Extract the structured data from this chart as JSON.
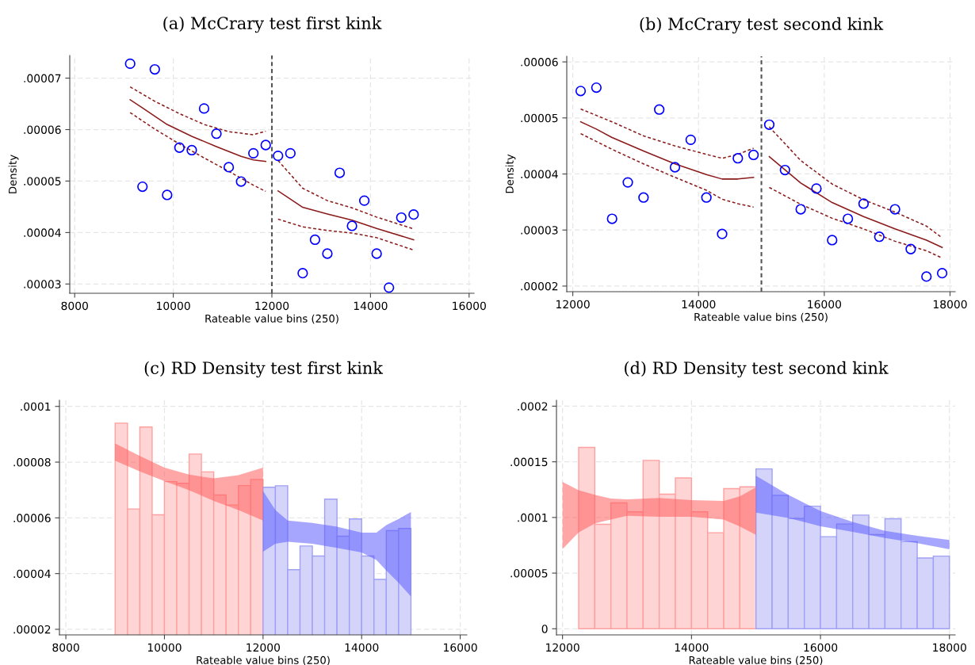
{
  "chart_data": [
    {
      "type": "scatter",
      "title": "(a) McCrary test first kink",
      "xlabel": "Rateable value bins (250)",
      "ylabel": "Density",
      "grid": true,
      "xlim": [
        7900,
        16100
      ],
      "xticks": [
        8000,
        10000,
        12000,
        14000,
        16000
      ],
      "ylim": [
        2.82e-05,
        7.44e-05
      ],
      "yticks": [
        {
          "value": 3e-05,
          "label": ".00003"
        },
        {
          "value": 4e-05,
          "label": ".00004"
        },
        {
          "value": 5e-05,
          "label": ".00005"
        },
        {
          "value": 6e-05,
          "label": ".00006"
        },
        {
          "value": 7e-05,
          "label": ".00007"
        }
      ],
      "ref_lines": [
        {
          "axis": "x",
          "value": 12000,
          "color": "#555555",
          "line_style": "dashed"
        }
      ],
      "series": [
        {
          "marker": "circle",
          "color": "#0000ff",
          "x": [
            9125,
            9375,
            9625,
            9875,
            10125,
            10375,
            10625,
            10875,
            11125,
            11375,
            11625,
            11875,
            12125,
            12375,
            12625,
            12875,
            13125,
            13375,
            13625,
            13875,
            14125,
            14375,
            14625,
            14875
          ],
          "values": [
            7.28e-05,
            4.89e-05,
            7.17e-05,
            4.73e-05,
            5.65e-05,
            5.6e-05,
            6.41e-05,
            5.92e-05,
            5.27e-05,
            4.99e-05,
            5.54e-05,
            5.7e-05,
            5.49e-05,
            5.54e-05,
            3.21e-05,
            3.86e-05,
            3.59e-05,
            5.16e-05,
            4.13e-05,
            4.62e-05,
            3.59e-05,
            2.93e-05,
            4.29e-05,
            4.35e-05
          ]
        },
        {
          "type": "line",
          "color": "#8b1a1a",
          "line_style": "solid",
          "x": [
            9125,
            9375,
            9875,
            10375,
            10875,
            11375,
            11625,
            11875
          ],
          "values": [
            6.58e-05,
            6.42e-05,
            6.1e-05,
            5.87e-05,
            5.67e-05,
            5.48e-05,
            5.41e-05,
            5.38e-05
          ]
        },
        {
          "type": "line",
          "color": "#8b1a1a",
          "line_style": "dashed",
          "x": [
            9125,
            9625,
            10125,
            10625,
            11125,
            11625,
            11875
          ],
          "values": [
            6.83e-05,
            6.55e-05,
            6.31e-05,
            6.1e-05,
            5.96e-05,
            5.9e-05,
            5.97e-05
          ]
        },
        {
          "type": "line",
          "color": "#8b1a1a",
          "line_style": "dashed",
          "x": [
            9125,
            9625,
            10125,
            10625,
            11125,
            11625,
            11875
          ],
          "values": [
            6.33e-05,
            6.01e-05,
            5.72e-05,
            5.45e-05,
            5.19e-05,
            4.92e-05,
            4.8e-05
          ]
        },
        {
          "type": "line",
          "color": "#8b1a1a",
          "line_style": "solid",
          "x": [
            12125,
            12625,
            13125,
            13625,
            14125,
            14875
          ],
          "values": [
            4.81e-05,
            4.49e-05,
            4.36e-05,
            4.24e-05,
            4.08e-05,
            3.86e-05
          ]
        },
        {
          "type": "line",
          "color": "#8b1a1a",
          "line_style": "dashed",
          "x": [
            12125,
            12625,
            13125,
            13625,
            14125,
            14875
          ],
          "values": [
            5.4e-05,
            4.86e-05,
            4.62e-05,
            4.48e-05,
            4.3e-05,
            4.07e-05
          ]
        },
        {
          "type": "line",
          "color": "#8b1a1a",
          "line_style": "dashed",
          "x": [
            12125,
            12625,
            13125,
            13625,
            14125,
            14875
          ],
          "values": [
            4.26e-05,
            4.11e-05,
            4.04e-05,
            3.99e-05,
            3.9e-05,
            3.66e-05
          ]
        }
      ]
    },
    {
      "type": "scatter",
      "title": "(b) McCrary test second kink",
      "xlabel": "Rateable value bins (250)",
      "ylabel": "Density",
      "grid": true,
      "xlim": [
        11904,
        18082
      ],
      "xticks": [
        12000,
        14000,
        16000,
        18000
      ],
      "ylim": [
        1.9e-05,
        6.1e-05
      ],
      "yticks": [
        {
          "value": 2e-05,
          "label": ".00002"
        },
        {
          "value": 3e-05,
          "label": ".00003"
        },
        {
          "value": 4e-05,
          "label": ".00004"
        },
        {
          "value": 5e-05,
          "label": ".00005"
        },
        {
          "value": 6e-05,
          "label": ".00006"
        }
      ],
      "ref_lines": [
        {
          "axis": "x",
          "value": 15000,
          "color": "#555555",
          "line_style": "dashed"
        }
      ],
      "series": [
        {
          "marker": "circle",
          "color": "#0000ff",
          "x": [
            12125,
            12375,
            12625,
            12875,
            13125,
            13375,
            13625,
            13875,
            14125,
            14375,
            14625,
            14875,
            15125,
            15375,
            15625,
            15875,
            16125,
            16375,
            16625,
            16875,
            17125,
            17375,
            17625,
            17875
          ],
          "values": [
            5.48e-05,
            5.54e-05,
            3.2e-05,
            3.85e-05,
            3.58e-05,
            5.15e-05,
            4.12e-05,
            4.61e-05,
            3.58e-05,
            2.93e-05,
            4.28e-05,
            4.34e-05,
            4.88e-05,
            4.07e-05,
            3.37e-05,
            3.74e-05,
            2.82e-05,
            3.2e-05,
            3.47e-05,
            2.88e-05,
            3.37e-05,
            2.66e-05,
            2.17e-05,
            2.23e-05
          ]
        },
        {
          "type": "line",
          "color": "#8b1a1a",
          "line_style": "solid",
          "x": [
            12125,
            12375,
            12625,
            13125,
            13625,
            14125,
            14375,
            14625,
            14875
          ],
          "values": [
            4.93e-05,
            4.8e-05,
            4.65e-05,
            4.41e-05,
            4.18e-05,
            3.99e-05,
            3.91e-05,
            3.91e-05,
            3.94e-05
          ]
        },
        {
          "type": "line",
          "color": "#8b1a1a",
          "line_style": "dashed",
          "x": [
            12125,
            12625,
            13125,
            13625,
            14125,
            14375,
            14625,
            14875
          ],
          "values": [
            5.16e-05,
            4.93e-05,
            4.68e-05,
            4.5e-05,
            4.35e-05,
            4.28e-05,
            4.35e-05,
            4.46e-05
          ]
        },
        {
          "type": "line",
          "color": "#8b1a1a",
          "line_style": "dashed",
          "x": [
            12125,
            12625,
            13125,
            13625,
            14125,
            14375,
            14625,
            14875
          ],
          "values": [
            4.72e-05,
            4.44e-05,
            4.18e-05,
            3.94e-05,
            3.71e-05,
            3.55e-05,
            3.47e-05,
            3.41e-05
          ]
        },
        {
          "type": "line",
          "color": "#8b1a1a",
          "line_style": "solid",
          "x": [
            15125,
            15625,
            16125,
            16625,
            17125,
            17625,
            17875
          ],
          "values": [
            4.31e-05,
            3.84e-05,
            3.49e-05,
            3.24e-05,
            3.02e-05,
            2.82e-05,
            2.69e-05
          ]
        },
        {
          "type": "line",
          "color": "#8b1a1a",
          "line_style": "dashed",
          "x": [
            15125,
            15625,
            16125,
            16625,
            17125,
            17625,
            17875
          ],
          "values": [
            4.84e-05,
            4.24e-05,
            3.82e-05,
            3.54e-05,
            3.32e-05,
            3.07e-05,
            2.86e-05
          ]
        },
        {
          "type": "line",
          "color": "#8b1a1a",
          "line_style": "dashed",
          "x": [
            15125,
            15625,
            16125,
            16625,
            17125,
            17625,
            17875
          ],
          "values": [
            3.76e-05,
            3.46e-05,
            3.21e-05,
            3.02e-05,
            2.8e-05,
            2.63e-05,
            2.5e-05
          ]
        }
      ]
    },
    {
      "type": "histogram",
      "title": "(c) RD Density test first kink",
      "xlabel": "Rateable value bins (250)",
      "grid": true,
      "xlim": [
        7870,
        16135
      ],
      "xticks": [
        8000,
        10000,
        12000,
        14000,
        16000
      ],
      "ylim": [
        1.8e-05,
        0.0001022
      ],
      "yticks": [
        {
          "value": 2e-05,
          "label": ".00002"
        },
        {
          "value": 4e-05,
          "label": ".00004"
        },
        {
          "value": 6e-05,
          "label": ".00006"
        },
        {
          "value": 8e-05,
          "label": ".00008"
        },
        {
          "value": 0.0001,
          "label": ".0001"
        }
      ],
      "series": [
        {
          "color": "#ffd4d4",
          "bins": [
            9000,
            9250,
            9500,
            9750,
            10000,
            10250,
            10500,
            10750,
            11000,
            11250,
            11500,
            11750,
            12000
          ],
          "values": [
            9.4e-05,
            6.32e-05,
            9.26e-05,
            6.11e-05,
            7.3e-05,
            7.24e-05,
            8.29e-05,
            7.65e-05,
            6.82e-05,
            6.46e-05,
            7.16e-05,
            7.38e-05
          ]
        },
        {
          "color": "#d4d4fa",
          "bins": [
            12000,
            12250,
            12500,
            12750,
            13000,
            13250,
            13500,
            13750,
            14000,
            14250,
            14500,
            14750,
            15000
          ],
          "values": [
            7.1e-05,
            7.15e-05,
            4.14e-05,
            4.99e-05,
            4.63e-05,
            6.67e-05,
            5.34e-05,
            5.96e-05,
            4.63e-05,
            3.79e-05,
            5.54e-05,
            5.62e-05
          ]
        },
        {
          "type": "area",
          "color": "#ff5c5c",
          "x": [
            9000,
            9500,
            10000,
            10500,
            11000,
            11500,
            12000
          ],
          "values": [
            null,
            null,
            null,
            null,
            null,
            null,
            null
          ],
          "lower": [
            8.05e-05,
            7.67e-05,
            7.32e-05,
            6.99e-05,
            6.61e-05,
            6.28e-05,
            5.9e-05
          ],
          "upper": [
            8.67e-05,
            8.22e-05,
            7.8e-05,
            7.55e-05,
            7.42e-05,
            7.53e-05,
            7.8e-05
          ]
        },
        {
          "type": "area",
          "color": "#5c5cff",
          "x": [
            12000,
            12250,
            12500,
            13000,
            13500,
            14000,
            14300,
            14500,
            14750,
            15000
          ],
          "values": [
            null,
            null,
            null,
            null,
            null,
            null,
            null,
            null,
            null,
            null
          ],
          "lower": [
            4.79e-05,
            5.07e-05,
            5.14e-05,
            5.07e-05,
            4.92e-05,
            4.76e-05,
            4.49e-05,
            4.11e-05,
            3.67e-05,
            3.18e-05
          ],
          "upper": [
            6.96e-05,
            6.28e-05,
            5.9e-05,
            5.82e-05,
            5.68e-05,
            5.47e-05,
            5.47e-05,
            5.74e-05,
            5.96e-05,
            6.21e-05
          ]
        }
      ]
    },
    {
      "type": "histogram",
      "title": "(d) RD Density test second kink",
      "xlabel": "Rateable value bins (250)",
      "grid": true,
      "xlim": [
        11906,
        18089
      ],
      "xticks": [
        12000,
        14000,
        16000,
        18000
      ],
      "ylim": [
        -5.5e-06,
        0.0002053
      ],
      "yticks": [
        0,
        {
          "value": 5e-05,
          "label": ".00005"
        },
        {
          "value": 0.0001,
          "label": ".0001"
        },
        {
          "value": 0.00015,
          "label": ".00015"
        },
        {
          "value": 0.0002,
          "label": ".0002"
        }
      ],
      "series": [
        {
          "color": "#ffd4d4",
          "bins": [
            12250,
            12500,
            12750,
            13000,
            13250,
            13500,
            13750,
            14000,
            14250,
            14500,
            14750,
            15000
          ],
          "values": [
            0.0001629,
            9.38e-05,
            0.0001131,
            0.0001051,
            0.0001513,
            0.0001209,
            0.0001355,
            0.0001051,
            8.63e-05,
            0.0001259,
            0.0001275
          ]
        },
        {
          "color": "#d4d4fa",
          "bins": [
            15000,
            15250,
            15500,
            15750,
            16000,
            16250,
            16500,
            16750,
            17000,
            17250,
            17500,
            17750,
            18000
          ],
          "values": [
            0.0001436,
            0.0001198,
            9.9e-05,
            0.0001101,
            8.27e-05,
            9.41e-05,
            0.0001021,
            8.46e-05,
            9.88e-05,
            7.83e-05,
            6.36e-05,
            6.53e-05
          ]
        },
        {
          "type": "area",
          "color": "#ff5c5c",
          "x": [
            12000,
            12250,
            12500,
            12750,
            13000,
            13500,
            14000,
            14500,
            14750,
            15000
          ],
          "values": [
            null,
            null,
            null,
            null,
            null,
            null,
            null,
            null,
            null,
            null
          ],
          "lower": [
            7.16e-05,
            8.66e-05,
            9.46e-05,
            9.82e-05,
            0.0001015,
            0.0001007,
            0.0001007,
            9.82e-05,
            9.18e-05,
            8.44e-05
          ],
          "upper": [
            0.000132,
            0.0001245,
            0.0001203,
            0.000117,
            0.0001162,
            0.0001176,
            0.0001156,
            0.0001148,
            0.0001189,
            0.0001272
          ]
        },
        {
          "type": "area",
          "color": "#5c5cff",
          "x": [
            15000,
            15500,
            16000,
            16500,
            17000,
            17500,
            18000
          ],
          "values": [
            null,
            null,
            null,
            null,
            null,
            null,
            null
          ],
          "lower": [
            0.0001043,
            9.96e-05,
            9.21e-05,
            8.71e-05,
            8.16e-05,
            7.69e-05,
            7.14e-05
          ],
          "upper": [
            0.0001375,
            0.0001203,
            0.0001057,
            9.6e-05,
            8.8e-05,
            8.35e-05,
            7.97e-05
          ]
        }
      ]
    }
  ]
}
